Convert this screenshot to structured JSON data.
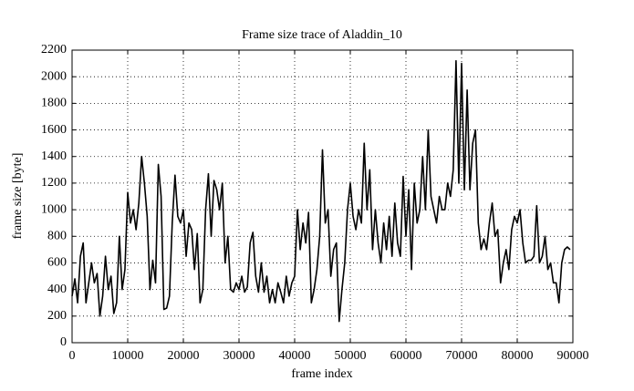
{
  "chart_data": {
    "type": "line",
    "title": "Frame size trace of Aladdin_10",
    "xlabel": "frame index",
    "ylabel": "frame size [byte]",
    "x": [
      0,
      500,
      1000,
      1500,
      2000,
      2500,
      3000,
      3500,
      4000,
      4500,
      5000,
      5500,
      6000,
      6500,
      7000,
      7500,
      8000,
      8500,
      9000,
      9500,
      10000,
      10500,
      11000,
      11500,
      12000,
      12500,
      13000,
      13500,
      14000,
      14500,
      15000,
      15500,
      16000,
      16500,
      17000,
      17500,
      18000,
      18500,
      19000,
      19500,
      20000,
      20500,
      21000,
      21500,
      22000,
      22500,
      23000,
      23500,
      24000,
      24500,
      25000,
      25500,
      26000,
      26500,
      27000,
      27500,
      28000,
      28500,
      29000,
      29500,
      30000,
      30500,
      31000,
      31500,
      32000,
      32500,
      33000,
      33500,
      34000,
      34500,
      35000,
      35500,
      36000,
      36500,
      37000,
      37500,
      38000,
      38500,
      39000,
      39500,
      40000,
      40500,
      41000,
      41500,
      42000,
      42500,
      43000,
      43500,
      44000,
      44500,
      45000,
      45500,
      46000,
      46500,
      47000,
      47500,
      48000,
      48500,
      49000,
      49500,
      50000,
      50500,
      51000,
      51500,
      52000,
      52500,
      53000,
      53500,
      54000,
      54500,
      55000,
      55500,
      56000,
      56500,
      57000,
      57500,
      58000,
      58500,
      59000,
      59500,
      60000,
      60500,
      61000,
      61500,
      62000,
      62500,
      63000,
      63500,
      64000,
      64500,
      65000,
      65500,
      66000,
      66500,
      67000,
      67500,
      68000,
      68500,
      69000,
      69500,
      70000,
      70500,
      71000,
      71500,
      72000,
      72500,
      73000,
      73500,
      74000,
      74500,
      75000,
      75500,
      76000,
      76500,
      77000,
      77500,
      78000,
      78500,
      79000,
      79500,
      80000,
      80500,
      81000,
      81500,
      82000,
      82500,
      83000,
      83500,
      84000,
      84500,
      85000,
      85500,
      86000,
      86500,
      87000,
      87500,
      88000,
      88500,
      89000,
      89500
    ],
    "series": [
      {
        "name": "frame size",
        "color": "#000000",
        "values": [
          350,
          480,
          300,
          650,
          750,
          300,
          450,
          600,
          450,
          520,
          200,
          350,
          650,
          400,
          500,
          220,
          300,
          800,
          400,
          550,
          1130,
          900,
          1000,
          850,
          1050,
          1400,
          1200,
          950,
          400,
          620,
          450,
          1340,
          1100,
          250,
          260,
          350,
          900,
          1260,
          950,
          900,
          1000,
          650,
          900,
          850,
          550,
          820,
          300,
          400,
          1000,
          1270,
          800,
          1220,
          1150,
          1000,
          1200,
          600,
          800,
          400,
          380,
          450,
          400,
          500,
          380,
          420,
          750,
          830,
          500,
          380,
          600,
          380,
          500,
          300,
          400,
          300,
          450,
          380,
          300,
          500,
          350,
          450,
          500,
          1000,
          700,
          900,
          750,
          980,
          300,
          400,
          550,
          800,
          1450,
          900,
          1000,
          500,
          700,
          750,
          160,
          400,
          600,
          1000,
          1200,
          950,
          850,
          1000,
          900,
          1500,
          1000,
          1300,
          700,
          1000,
          750,
          600,
          900,
          700,
          950,
          650,
          1050,
          750,
          650,
          1250,
          800,
          1150,
          550,
          1200,
          900,
          1000,
          1400,
          1000,
          1600,
          1100,
          1000,
          900,
          1100,
          1000,
          1000,
          1200,
          1100,
          1300,
          2120,
          1200,
          2100,
          1150,
          1900,
          1150,
          1500,
          1600,
          900,
          700,
          780,
          700,
          900,
          1050,
          800,
          850,
          450,
          600,
          700,
          550,
          850,
          950,
          900,
          1000,
          750,
          600,
          620,
          620,
          650,
          1030,
          600,
          650,
          800,
          550,
          600,
          450,
          450,
          300,
          600,
          700,
          720,
          700
        ]
      }
    ],
    "xlim": [
      0,
      90000
    ],
    "ylim": [
      0,
      2200
    ],
    "xticks": [
      0,
      10000,
      20000,
      30000,
      40000,
      50000,
      60000,
      70000,
      80000,
      90000
    ],
    "yticks": [
      0,
      200,
      400,
      600,
      800,
      1000,
      1200,
      1400,
      1600,
      1800,
      2000,
      2200
    ],
    "grid": true
  }
}
